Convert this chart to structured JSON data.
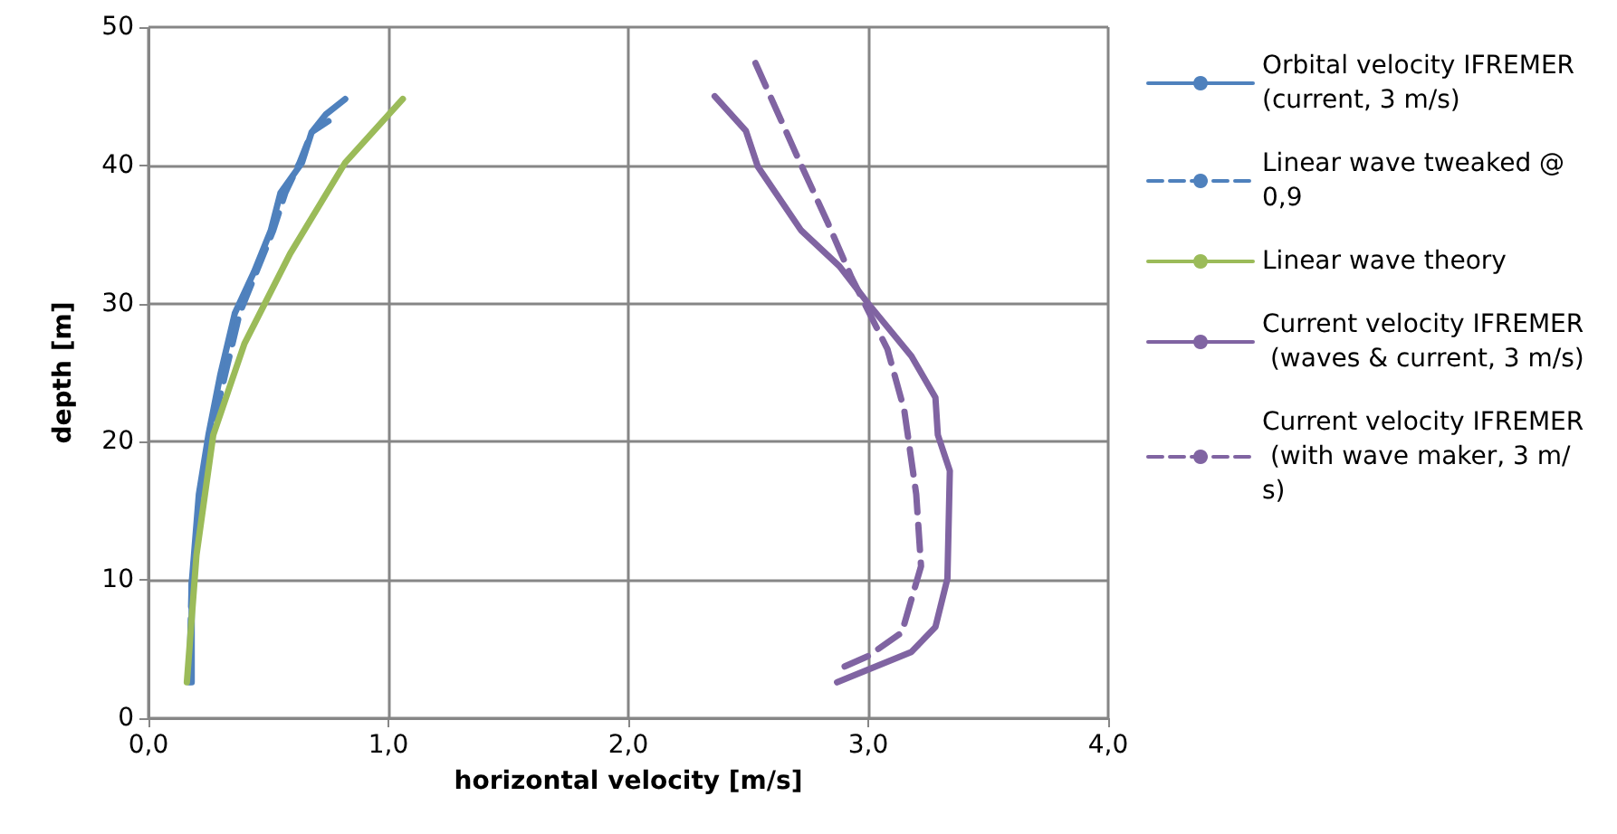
{
  "chart_data": {
    "type": "line",
    "xlabel": "horizontal velocity [m/s]",
    "ylabel": "depth [m]",
    "xlim": [
      0,
      4
    ],
    "xticks": [
      {
        "value": 0,
        "label": "0,0"
      },
      {
        "value": 1,
        "label": "1,0"
      },
      {
        "value": 2,
        "label": "2,0"
      },
      {
        "value": 3,
        "label": "3,0"
      },
      {
        "value": 4,
        "label": "4,0"
      }
    ],
    "ylim": [
      0,
      50
    ],
    "yticks": [
      0,
      10,
      20,
      30,
      40,
      50
    ],
    "grid": true,
    "legend": "right",
    "marker": "none",
    "series": [
      {
        "name": "Orbital velocity IFREMER (current, 3 m/s)",
        "color": "#4f81bd",
        "line_style": "solid",
        "x": [
          0.18,
          0.18,
          0.21,
          0.25,
          0.3,
          0.36,
          0.44,
          0.51,
          0.55,
          0.64,
          0.68,
          0.74,
          0.82
        ],
        "values": [
          2.6,
          9.7,
          16.2,
          20.5,
          24.9,
          29.3,
          32.3,
          35.3,
          38,
          40.2,
          42.4,
          43.7,
          44.8
        ]
      },
      {
        "name": "Linear wave tweaked @ 0,9",
        "color": "#4f81bd",
        "line_style": "dashed",
        "x": [
          0.17,
          0.18,
          0.22,
          0.26,
          0.32,
          0.38,
          0.45,
          0.52,
          0.57,
          0.63,
          0.68,
          0.75
        ],
        "values": [
          2.6,
          9.7,
          16.2,
          20.5,
          24.9,
          29.3,
          32.3,
          35.3,
          38,
          40.2,
          42.4,
          43.2
        ]
      },
      {
        "name": "Linear wave theory",
        "color": "#9bbb59",
        "line_style": "solid",
        "x": [
          0.16,
          0.2,
          0.27,
          0.4,
          0.59,
          0.82,
          1.06
        ],
        "values": [
          2.6,
          11.8,
          20.5,
          27.1,
          33.6,
          40.2,
          44.8
        ]
      },
      {
        "name": "Current velocity IFREMER (waves & current, 3 m/s)",
        "color": "#8064a2",
        "line_style": "solid",
        "x": [
          2.36,
          2.49,
          2.54,
          2.72,
          2.88,
          3.0,
          3.18,
          3.28,
          3.29,
          3.34,
          3.33,
          3.28,
          3.18,
          2.87
        ],
        "values": [
          45,
          42.5,
          39.9,
          35.3,
          32.7,
          30,
          26.2,
          23.2,
          20.5,
          17.9,
          10.1,
          6.6,
          4.8,
          2.6
        ]
      },
      {
        "name": "Current velocity IFREMER (with wave maker, 3 m/s)",
        "color": "#8064a2",
        "line_style": "dashed",
        "x": [
          2.53,
          2.7,
          2.83,
          2.93,
          3.08,
          3.15,
          3.2,
          3.22,
          3.14,
          3.0,
          2.87
        ],
        "values": [
          47.4,
          40.8,
          35.9,
          31.9,
          26.7,
          22.3,
          16.2,
          11,
          6.2,
          4.5,
          3.5
        ]
      }
    ]
  }
}
